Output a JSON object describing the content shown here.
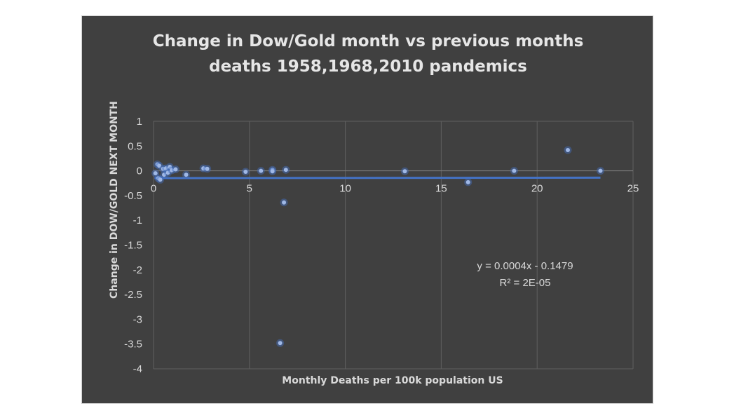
{
  "chart_data": {
    "type": "scatter",
    "title": [
      "Change in Dow/Gold month vs previous months",
      "deaths 1958,1968,2010 pandemics"
    ],
    "xlabel": "Monthly Deaths per 100k population US",
    "ylabel": "Change in DOW/GOLD NEXT MONTH",
    "xlim": [
      0,
      25
    ],
    "ylim": [
      -4,
      1
    ],
    "x_ticks": [
      0,
      5,
      10,
      15,
      20,
      25
    ],
    "x_tick_labels": [
      "0",
      "5",
      "10",
      "15",
      "20",
      "25"
    ],
    "y_ticks": [
      1,
      0.5,
      0,
      -0.5,
      -1,
      -1.5,
      -2,
      -2.5,
      -3,
      -3.5,
      -4
    ],
    "y_tick_labels": [
      "1",
      "0.5",
      "0",
      "-0.5",
      "-1",
      "-1.5",
      "-2",
      "-2.5",
      "-3",
      "-3.5",
      "-4"
    ],
    "grid": "vertical",
    "series": [
      {
        "points": [
          [
            0.1,
            -0.05
          ],
          [
            0.2,
            0.13
          ],
          [
            0.25,
            -0.15
          ],
          [
            0.3,
            0.1
          ],
          [
            0.35,
            -0.18
          ],
          [
            0.5,
            0.04
          ],
          [
            0.55,
            -0.08
          ],
          [
            0.65,
            0.05
          ],
          [
            0.75,
            -0.04
          ],
          [
            0.85,
            0.08
          ],
          [
            0.95,
            0.01
          ],
          [
            1.15,
            0.03
          ],
          [
            1.7,
            -0.08
          ],
          [
            2.6,
            0.05
          ],
          [
            2.8,
            0.04
          ],
          [
            4.8,
            -0.02
          ],
          [
            5.6,
            0.0
          ],
          [
            6.2,
            0.02
          ],
          [
            6.2,
            -0.01
          ],
          [
            6.6,
            -3.48
          ],
          [
            6.8,
            -0.64
          ],
          [
            6.9,
            0.02
          ],
          [
            13.1,
            -0.01
          ],
          [
            16.4,
            -0.23
          ],
          [
            18.8,
            0.0
          ],
          [
            21.6,
            0.42
          ],
          [
            23.3,
            0.0
          ]
        ],
        "color": "#4472c4"
      }
    ],
    "trendline": {
      "type": "linear",
      "slope": 0.0004,
      "intercept": -0.1479,
      "equation": "y = 0.0004x - 0.1479",
      "r_squared": "R² = 2E-05"
    }
  }
}
